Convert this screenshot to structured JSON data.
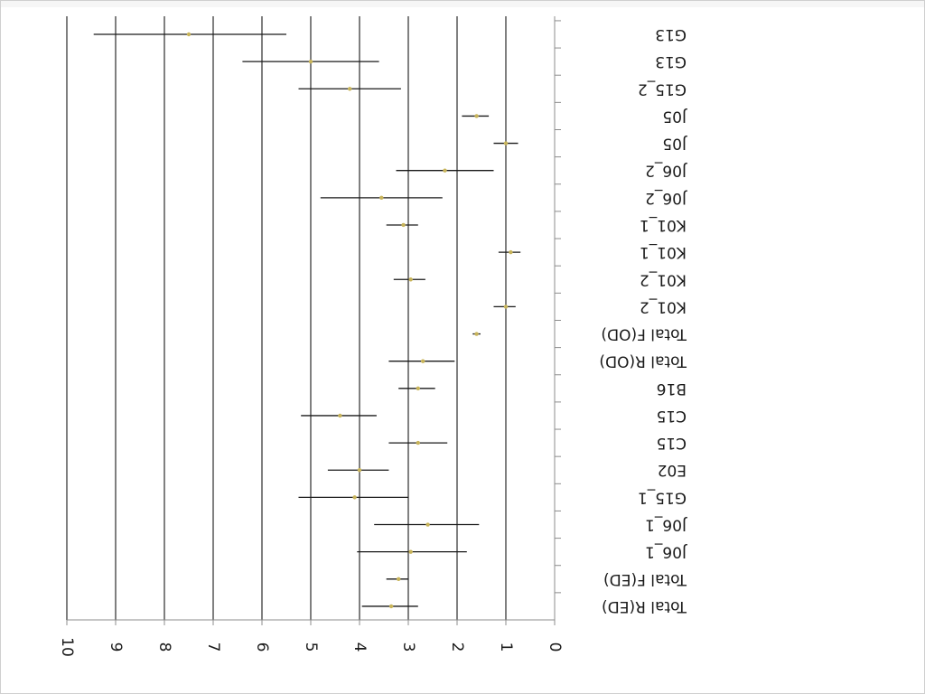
{
  "chart_data": {
    "type": "forest",
    "orientation": "rotated-180",
    "grid": true,
    "xlim": [
      0,
      10
    ],
    "x_ticks": [
      "0",
      "1",
      "2",
      "3",
      "4",
      "5",
      "6",
      "7",
      "8",
      "9",
      "10"
    ],
    "categories": [
      "G13",
      "G13",
      "G15_2",
      "J05",
      "J05",
      "J06_2",
      "J06_2",
      "K01_1",
      "K01_1",
      "K01_2",
      "K01_2",
      "Total F(OD)",
      "Total R(OD)",
      "B16",
      "C15",
      "C15",
      "E02",
      "G15_1",
      "J06_1",
      "J06_1",
      "Total F(ED)",
      "Total R(ED)"
    ],
    "points": [
      {
        "label": "G13",
        "estimate": 7.5,
        "lower": 5.5,
        "upper": 9.45
      },
      {
        "label": "G13",
        "estimate": 5.0,
        "lower": 3.6,
        "upper": 6.4
      },
      {
        "label": "G15_2",
        "estimate": 4.2,
        "lower": 3.15,
        "upper": 5.25
      },
      {
        "label": "J05",
        "estimate": 1.6,
        "lower": 1.35,
        "upper": 1.9
      },
      {
        "label": "J05",
        "estimate": 1.0,
        "lower": 0.75,
        "upper": 1.25
      },
      {
        "label": "J06_2",
        "estimate": 2.25,
        "lower": 1.25,
        "upper": 3.25
      },
      {
        "label": "J06_2",
        "estimate": 3.55,
        "lower": 2.3,
        "upper": 4.8
      },
      {
        "label": "K01_1",
        "estimate": 3.1,
        "lower": 2.8,
        "upper": 3.45
      },
      {
        "label": "K01_1",
        "estimate": 0.9,
        "lower": 0.7,
        "upper": 1.15
      },
      {
        "label": "K01_2",
        "estimate": 2.95,
        "lower": 2.65,
        "upper": 3.3
      },
      {
        "label": "K01_2",
        "estimate": 1.0,
        "lower": 0.8,
        "upper": 1.25
      },
      {
        "label": "Total F(OD)",
        "estimate": 1.6,
        "lower": 1.52,
        "upper": 1.68
      },
      {
        "label": "Total R(OD)",
        "estimate": 2.7,
        "lower": 2.05,
        "upper": 3.4
      },
      {
        "label": "B16",
        "estimate": 2.8,
        "lower": 2.45,
        "upper": 3.2
      },
      {
        "label": "C15",
        "estimate": 4.4,
        "lower": 3.65,
        "upper": 5.2
      },
      {
        "label": "C15",
        "estimate": 2.8,
        "lower": 2.2,
        "upper": 3.4
      },
      {
        "label": "E02",
        "estimate": 4.0,
        "lower": 3.4,
        "upper": 4.65
      },
      {
        "label": "G15_1",
        "estimate": 4.1,
        "lower": 3.0,
        "upper": 5.25
      },
      {
        "label": "J06_1",
        "estimate": 2.6,
        "lower": 1.55,
        "upper": 3.7
      },
      {
        "label": "J06_1",
        "estimate": 2.95,
        "lower": 1.8,
        "upper": 4.05
      },
      {
        "label": "Total F(ED)",
        "estimate": 3.2,
        "lower": 3.0,
        "upper": 3.45
      },
      {
        "label": "Total R(ED)",
        "estimate": 3.35,
        "lower": 2.8,
        "upper": 3.95
      }
    ],
    "colors": {
      "interval": "#1a1a1a",
      "point": "#c8b45a",
      "grid": "#2b2b2b",
      "axis": "#8c8c8c"
    }
  }
}
